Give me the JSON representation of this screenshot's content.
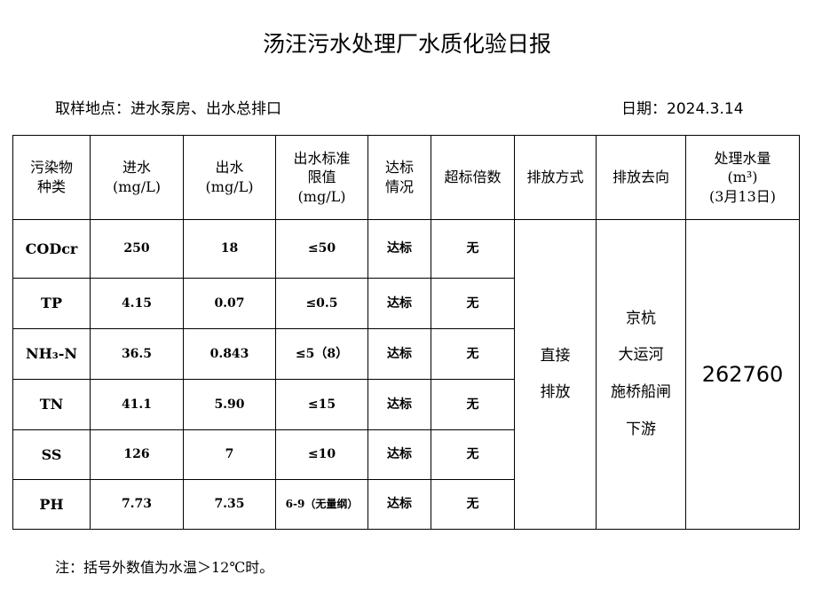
{
  "title": "汤汪污水处理厂水质化验日报",
  "location": "取样地点：进水泵房、出水总排口",
  "date": "日期：2024.3.14",
  "headers": {
    "pollutant": [
      "污染物",
      "种类"
    ],
    "inflow": [
      "进水",
      "(mg/L)"
    ],
    "outflow": [
      "出水",
      "(mg/L)"
    ],
    "limit": [
      "出水标准",
      "限值",
      "(mg/L)"
    ],
    "status": [
      "达标",
      "情况"
    ],
    "exceed": "超标倍数",
    "discharge_method": "排放方式",
    "discharge_dest": "排放去向",
    "volume": [
      "处理水量",
      "(m³)",
      "(3月13日)"
    ]
  },
  "rows": [
    {
      "pollutant": "CODcr",
      "inflow": "250",
      "outflow": "18",
      "limit": "≤50",
      "status": "达标",
      "exceed": "无"
    },
    {
      "pollutant": "TP",
      "inflow": "4.15",
      "outflow": "0.07",
      "limit": "≤0.5",
      "status": "达标",
      "exceed": "无"
    },
    {
      "pollutant": "NH₃-N",
      "inflow": "36.5",
      "outflow": "0.843",
      "limit": "≤5（8）",
      "status": "达标",
      "exceed": "无"
    },
    {
      "pollutant": "TN",
      "inflow": "41.1",
      "outflow": "5.90",
      "limit": "≤15",
      "status": "达标",
      "exceed": "无"
    },
    {
      "pollutant": "SS",
      "inflow": "126",
      "outflow": "7",
      "limit": "≤10",
      "status": "达标",
      "exceed": "无"
    },
    {
      "pollutant": "PH",
      "inflow": "7.73",
      "outflow": "7.35",
      "limit": "6-9（无量纲）",
      "status": "达标",
      "exceed": "无"
    }
  ],
  "discharge_method": [
    "直接",
    "排放"
  ],
  "discharge_dest": [
    "京杭",
    "大运河",
    "施桥船闸",
    "下游"
  ],
  "volume": "262760",
  "note": "注：括号外数值为水温＞12℃时。"
}
